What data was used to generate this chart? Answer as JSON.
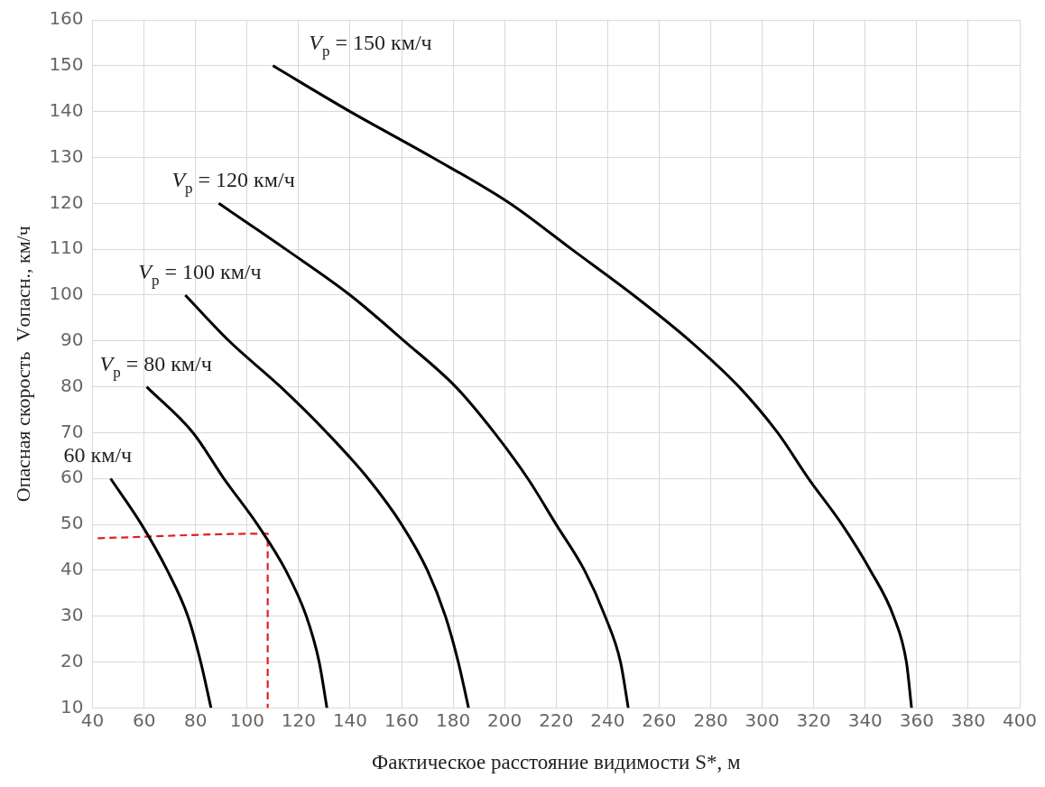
{
  "chart_data": {
    "type": "line",
    "xlabel": "Фактическое расстояние видимости S*, м",
    "ylabel": "Опасная скорость  Vопасн., км/ч",
    "xlim": [
      40,
      400
    ],
    "xticks": [
      40,
      60,
      80,
      100,
      120,
      140,
      160,
      180,
      200,
      220,
      240,
      260,
      280,
      300,
      320,
      340,
      360,
      380,
      400
    ],
    "ylim": [
      10,
      160
    ],
    "yticks": [
      10,
      20,
      30,
      40,
      50,
      60,
      70,
      80,
      90,
      100,
      110,
      120,
      130,
      140,
      150,
      160
    ],
    "grid": true,
    "legend": false,
    "marker": "none",
    "line_style": "solid",
    "series": [
      {
        "name": "60 км/ч",
        "color": "#000000",
        "x": [
          47,
          59,
          69,
          77,
          82,
          86
        ],
        "values": [
          60,
          50,
          40,
          30,
          20,
          10
        ]
      },
      {
        "name": "V$_{р}$ = 80 км/ч",
        "color": "#000000",
        "x": [
          61,
          79,
          91,
          104,
          115,
          123,
          128,
          131
        ],
        "values": [
          80,
          70,
          60,
          50,
          40,
          30,
          20,
          10
        ]
      },
      {
        "name": "V$_{р}$ = 100 км/ч",
        "color": "#000000",
        "x": [
          76,
          93,
          113,
          131,
          147,
          160,
          170,
          177,
          182,
          186
        ],
        "values": [
          100,
          90,
          80,
          70,
          60,
          50,
          40,
          30,
          20,
          10
        ]
      },
      {
        "name": "V$_{р}$ = 120 км/ч",
        "color": "#000000",
        "x": [
          89,
          115,
          140,
          161,
          181,
          196,
          209,
          220,
          231,
          239,
          245,
          248
        ],
        "values": [
          120,
          110,
          100,
          90,
          80,
          70,
          60,
          50,
          40,
          30,
          20,
          10
        ]
      },
      {
        "name": "V$_{р}$ = 150 км/ч",
        "color": "#000000",
        "x": [
          110,
          140,
          172,
          202,
          226,
          250,
          272,
          291,
          306,
          318,
          331,
          342,
          351,
          356,
          358
        ],
        "values": [
          150,
          140,
          130,
          120,
          110,
          100,
          90,
          80,
          70,
          60,
          50,
          40,
          30,
          20,
          10
        ]
      },
      {
        "color": "#e02020",
        "line_style": "dashed",
        "x": [
          42,
          108,
          108
        ],
        "values": [
          47,
          48,
          10
        ]
      }
    ]
  }
}
